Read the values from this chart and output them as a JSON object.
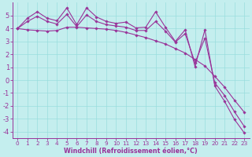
{
  "xlabel": "Windchill (Refroidissement éolien,°C)",
  "bg_color": "#c4eeee",
  "line_color": "#993399",
  "grid_color": "#99dddd",
  "xlim": [
    -0.5,
    23.5
  ],
  "ylim": [
    -4.5,
    6.0
  ],
  "yticks": [
    -4,
    -3,
    -2,
    -1,
    0,
    1,
    2,
    3,
    4,
    5
  ],
  "xticks": [
    0,
    1,
    2,
    3,
    4,
    5,
    6,
    7,
    8,
    9,
    10,
    11,
    12,
    13,
    14,
    15,
    16,
    17,
    18,
    19,
    20,
    21,
    22,
    23
  ],
  "line1_x": [
    0,
    1,
    2,
    3,
    4,
    5,
    6,
    7,
    8,
    9,
    10,
    11,
    12,
    13,
    14,
    15,
    16,
    17,
    18,
    19,
    20,
    21,
    22,
    23
  ],
  "line1_y": [
    4.0,
    3.9,
    3.85,
    3.8,
    3.85,
    4.1,
    4.1,
    4.05,
    4.0,
    3.95,
    3.85,
    3.7,
    3.5,
    3.3,
    3.05,
    2.8,
    2.45,
    2.1,
    1.6,
    1.1,
    0.3,
    -0.55,
    -1.55,
    -2.5
  ],
  "line2_x": [
    0,
    1,
    2,
    3,
    4,
    5,
    6,
    7,
    8,
    9,
    10,
    11,
    12,
    13,
    14,
    15,
    16,
    17,
    18,
    19,
    20,
    21,
    22,
    23
  ],
  "line2_y": [
    4.0,
    4.8,
    5.3,
    4.8,
    4.6,
    5.6,
    4.3,
    5.6,
    4.9,
    4.55,
    4.4,
    4.5,
    4.05,
    4.1,
    5.3,
    4.1,
    3.0,
    3.9,
    1.05,
    3.9,
    -0.45,
    -1.65,
    -3.05,
    -4.1
  ],
  "line3_x": [
    0,
    1,
    2,
    3,
    4,
    5,
    6,
    7,
    8,
    9,
    10,
    11,
    12,
    13,
    14,
    15,
    16,
    17,
    18,
    19,
    20,
    21,
    22,
    23
  ],
  "line3_y": [
    4.0,
    4.55,
    4.95,
    4.55,
    4.35,
    5.1,
    4.15,
    5.05,
    4.55,
    4.3,
    4.2,
    4.1,
    3.85,
    3.85,
    4.55,
    3.8,
    2.95,
    3.6,
    1.35,
    3.25,
    -0.2,
    -1.2,
    -2.45,
    -3.6
  ]
}
